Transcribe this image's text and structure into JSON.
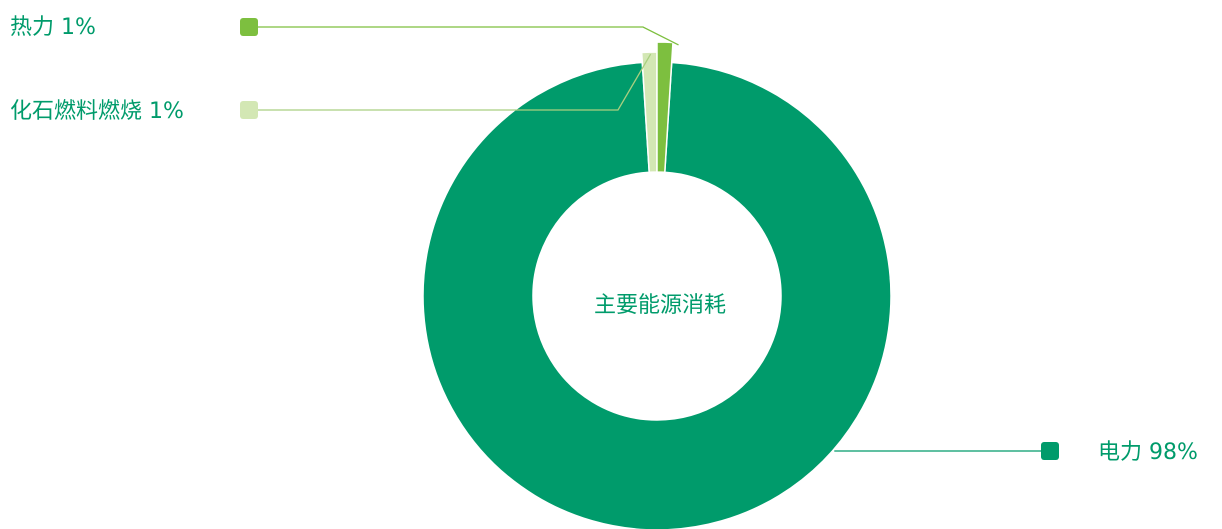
{
  "chart_data": {
    "type": "pie",
    "center_label": "主要能源消耗",
    "slices": [
      {
        "name": "电力",
        "value": 98,
        "label": "电力 98%",
        "color": "#009b6b"
      },
      {
        "name": "化石燃料燃烧",
        "value": 1,
        "label": "化石燃料燃烧 1%",
        "color": "#d3e7b4"
      },
      {
        "name": "热力",
        "value": 1,
        "label": "热力 1%",
        "color": "#7dbf3f"
      }
    ],
    "label_text_color": "#009b6b",
    "legend_placement": "callouts"
  }
}
